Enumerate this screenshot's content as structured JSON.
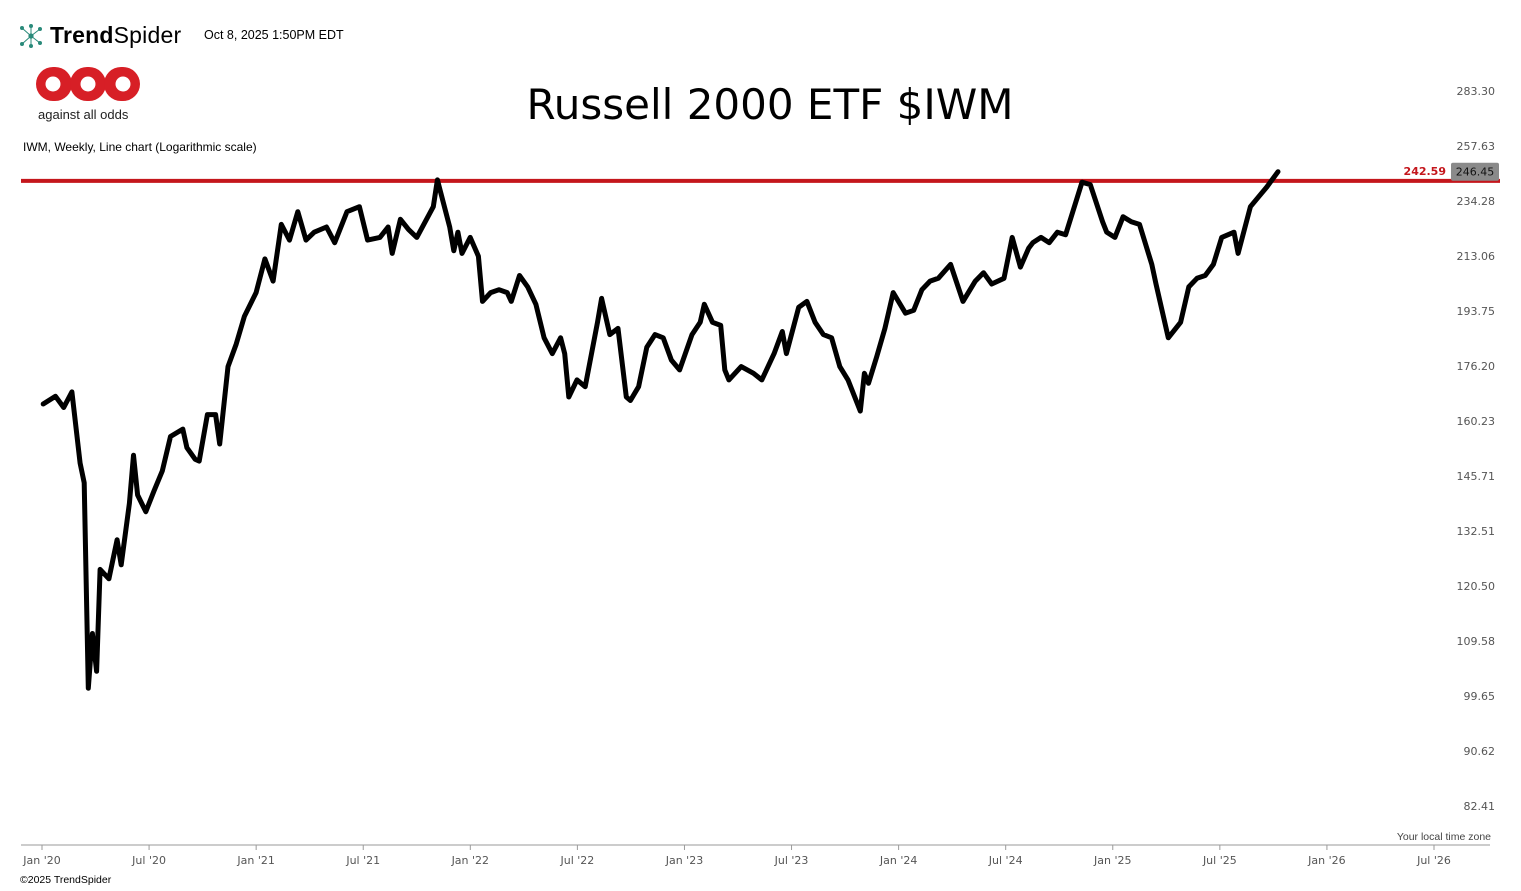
{
  "header": {
    "brand_bold": "Trend",
    "brand_light": "Spider",
    "timestamp": "Oct 8, 2025 1:50PM EDT"
  },
  "logo": {
    "tagline": "against all odds",
    "color": "#d71f26"
  },
  "footer": {
    "copyright": "©2025 TrendSpider",
    "timezone_note": "Your local time zone"
  },
  "chart_data": {
    "type": "line",
    "title": "Russell 2000 ETF $IWM",
    "subtitle": "IWM, Weekly, Line chart (Logarithmic scale)",
    "log_scale": true,
    "grid": false,
    "line_color": "#000000",
    "y_ticks": [
      "283.30",
      "257.63",
      "234.28",
      "213.06",
      "193.75",
      "176.20",
      "160.23",
      "145.71",
      "132.51",
      "120.50",
      "109.58",
      "99.65",
      "90.62",
      "82.41"
    ],
    "x_ticks": [
      "Jan '20",
      "Jul '20",
      "Jan '21",
      "Jul '21",
      "Jan '22",
      "Jul '22",
      "Jan '23",
      "Jul '23",
      "Jan '24",
      "Jul '24",
      "Jan '25",
      "Jul '25",
      "Jan '26",
      "Jul '26"
    ],
    "horizontal_line": {
      "value": 242.59,
      "label": "242.59",
      "color": "#c4161c"
    },
    "last_price": {
      "value": 246.45,
      "label": "246.45"
    },
    "series": [
      {
        "points": [
          [
            "2020-01-03",
            165.0
          ],
          [
            "2020-01-24",
            167.2
          ],
          [
            "2020-02-07",
            164.0
          ],
          [
            "2020-02-21",
            168.5
          ],
          [
            "2020-03-06",
            149.0
          ],
          [
            "2020-03-13",
            144.0
          ],
          [
            "2020-03-20",
            101.0
          ],
          [
            "2020-03-27",
            111.0
          ],
          [
            "2020-04-03",
            104.0
          ],
          [
            "2020-04-09",
            124.0
          ],
          [
            "2020-04-24",
            122.0
          ],
          [
            "2020-05-08",
            130.5
          ],
          [
            "2020-05-15",
            125.0
          ],
          [
            "2020-05-29",
            139.0
          ],
          [
            "2020-06-05",
            151.0
          ],
          [
            "2020-06-12",
            141.0
          ],
          [
            "2020-06-26",
            137.0
          ],
          [
            "2020-07-10",
            142.0
          ],
          [
            "2020-07-24",
            147.0
          ],
          [
            "2020-08-07",
            156.0
          ],
          [
            "2020-08-28",
            158.0
          ],
          [
            "2020-09-04",
            153.0
          ],
          [
            "2020-09-18",
            150.0
          ],
          [
            "2020-09-25",
            149.5
          ],
          [
            "2020-10-09",
            162.0
          ],
          [
            "2020-10-23",
            162.0
          ],
          [
            "2020-10-30",
            154.0
          ],
          [
            "2020-11-13",
            176.0
          ],
          [
            "2020-11-27",
            183.0
          ],
          [
            "2020-12-11",
            192.0
          ],
          [
            "2020-12-31",
            200.0
          ],
          [
            "2021-01-15",
            212.0
          ],
          [
            "2021-01-29",
            204.0
          ],
          [
            "2021-02-12",
            225.0
          ],
          [
            "2021-02-26",
            219.0
          ],
          [
            "2021-03-12",
            230.0
          ],
          [
            "2021-03-26",
            219.0
          ],
          [
            "2021-04-09",
            222.0
          ],
          [
            "2021-04-30",
            224.0
          ],
          [
            "2021-05-14",
            218.0
          ],
          [
            "2021-06-04",
            230.0
          ],
          [
            "2021-06-25",
            232.0
          ],
          [
            "2021-07-09",
            219.0
          ],
          [
            "2021-07-30",
            220.0
          ],
          [
            "2021-08-13",
            224.0
          ],
          [
            "2021-08-20",
            214.0
          ],
          [
            "2021-09-03",
            227.0
          ],
          [
            "2021-09-17",
            223.0
          ],
          [
            "2021-10-01",
            220.0
          ],
          [
            "2021-10-29",
            232.0
          ],
          [
            "2021-11-05",
            243.0
          ],
          [
            "2021-11-26",
            224.0
          ],
          [
            "2021-12-03",
            215.0
          ],
          [
            "2021-12-10",
            222.0
          ],
          [
            "2021-12-17",
            214.0
          ],
          [
            "2021-12-31",
            220.0
          ],
          [
            "2022-01-14",
            213.0
          ],
          [
            "2022-01-21",
            197.0
          ],
          [
            "2022-02-04",
            200.0
          ],
          [
            "2022-02-18",
            201.0
          ],
          [
            "2022-03-04",
            200.0
          ],
          [
            "2022-03-11",
            197.0
          ],
          [
            "2022-03-25",
            206.0
          ],
          [
            "2022-04-08",
            202.0
          ],
          [
            "2022-04-22",
            196.0
          ],
          [
            "2022-05-06",
            185.0
          ],
          [
            "2022-05-20",
            180.0
          ],
          [
            "2022-06-03",
            185.0
          ],
          [
            "2022-06-10",
            180.0
          ],
          [
            "2022-06-17",
            167.0
          ],
          [
            "2022-07-01",
            172.0
          ],
          [
            "2022-07-15",
            170.0
          ],
          [
            "2022-08-05",
            190.0
          ],
          [
            "2022-08-12",
            198.0
          ],
          [
            "2022-08-26",
            186.0
          ],
          [
            "2022-09-09",
            188.0
          ],
          [
            "2022-09-23",
            167.0
          ],
          [
            "2022-09-30",
            166.0
          ],
          [
            "2022-10-14",
            170.0
          ],
          [
            "2022-10-28",
            182.0
          ],
          [
            "2022-11-11",
            186.0
          ],
          [
            "2022-11-25",
            185.0
          ],
          [
            "2022-12-09",
            178.0
          ],
          [
            "2022-12-23",
            175.0
          ],
          [
            "2023-01-13",
            186.0
          ],
          [
            "2023-01-27",
            190.0
          ],
          [
            "2023-02-03",
            196.0
          ],
          [
            "2023-02-17",
            190.0
          ],
          [
            "2023-03-03",
            189.0
          ],
          [
            "2023-03-10",
            175.0
          ],
          [
            "2023-03-17",
            172.0
          ],
          [
            "2023-04-07",
            176.0
          ],
          [
            "2023-04-28",
            174.0
          ],
          [
            "2023-05-12",
            172.0
          ],
          [
            "2023-06-02",
            180.0
          ],
          [
            "2023-06-16",
            187.0
          ],
          [
            "2023-06-23",
            180.0
          ],
          [
            "2023-07-14",
            195.0
          ],
          [
            "2023-07-28",
            197.0
          ],
          [
            "2023-08-11",
            190.0
          ],
          [
            "2023-08-25",
            186.0
          ],
          [
            "2023-09-08",
            185.0
          ],
          [
            "2023-09-22",
            176.0
          ],
          [
            "2023-10-06",
            172.0
          ],
          [
            "2023-10-27",
            163.0
          ],
          [
            "2023-11-03",
            174.0
          ],
          [
            "2023-11-10",
            171.0
          ],
          [
            "2023-11-24",
            179.0
          ],
          [
            "2023-12-08",
            188.0
          ],
          [
            "2023-12-22",
            200.0
          ],
          [
            "2024-01-12",
            193.0
          ],
          [
            "2024-01-26",
            194.0
          ],
          [
            "2024-02-09",
            201.0
          ],
          [
            "2024-02-23",
            204.0
          ],
          [
            "2024-03-08",
            205.0
          ],
          [
            "2024-03-29",
            210.0
          ],
          [
            "2024-04-19",
            197.0
          ],
          [
            "2024-05-10",
            204.0
          ],
          [
            "2024-05-24",
            207.0
          ],
          [
            "2024-06-07",
            203.0
          ],
          [
            "2024-06-28",
            205.0
          ],
          [
            "2024-07-12",
            220.0
          ],
          [
            "2024-07-26",
            209.0
          ],
          [
            "2024-08-09",
            216.0
          ],
          [
            "2024-08-16",
            218.0
          ],
          [
            "2024-08-30",
            220.0
          ],
          [
            "2024-09-13",
            218.0
          ],
          [
            "2024-09-27",
            222.0
          ],
          [
            "2024-10-11",
            221.0
          ],
          [
            "2024-11-08",
            242.0
          ],
          [
            "2024-11-22",
            241.0
          ],
          [
            "2024-12-13",
            226.0
          ],
          [
            "2024-12-20",
            222.0
          ],
          [
            "2025-01-03",
            220.0
          ],
          [
            "2025-01-17",
            228.0
          ],
          [
            "2025-01-31",
            226.0
          ],
          [
            "2025-02-14",
            225.0
          ],
          [
            "2025-03-07",
            210.0
          ],
          [
            "2025-03-14",
            203.0
          ],
          [
            "2025-04-04",
            185.0
          ],
          [
            "2025-04-25",
            190.0
          ],
          [
            "2025-05-09",
            202.0
          ],
          [
            "2025-05-23",
            205.0
          ],
          [
            "2025-06-06",
            206.0
          ],
          [
            "2025-06-20",
            210.0
          ],
          [
            "2025-07-04",
            220.0
          ],
          [
            "2025-07-25",
            222.0
          ],
          [
            "2025-08-01",
            214.0
          ],
          [
            "2025-08-22",
            232.0
          ],
          [
            "2025-09-05",
            236.0
          ],
          [
            "2025-09-19",
            240.0
          ],
          [
            "2025-10-08",
            246.45
          ]
        ]
      }
    ]
  }
}
